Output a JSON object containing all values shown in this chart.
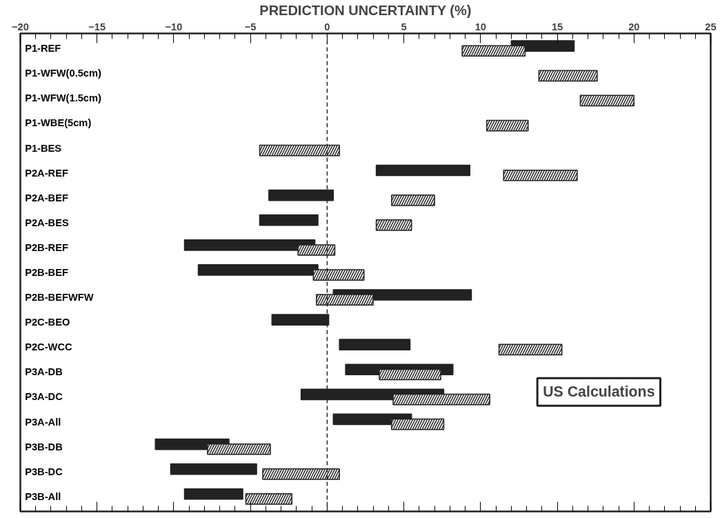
{
  "chart_data": {
    "type": "bar",
    "orientation": "horizontal",
    "xlabel": "PREDICTION UNCERTAINTY (%)",
    "categories": [
      "P1-REF",
      "P1-WFW(0.5cm)",
      "P1-WFW(1.5cm)",
      "P1-WBE(5cm)",
      "P1-BES",
      "P2A-REF",
      "P2A-BEF",
      "P2A-BES",
      "P2B-REF",
      "P2B-BEF",
      "P2B-BEFWFW",
      "P2C-BEO",
      "P2C-WCC",
      "P3A-DB",
      "P3A-DC",
      "P3A-All",
      "P3B-DB",
      "P3B-DC",
      "P3B-All"
    ],
    "series": [
      {
        "color": "#222222",
        "base": [
          12.0,
          null,
          null,
          null,
          null,
          3.2,
          -3.8,
          -4.4,
          -9.3,
          -8.4,
          0.4,
          -3.6,
          0.8,
          1.2,
          -1.7,
          0.4,
          -11.2,
          -10.2,
          -9.3
        ],
        "values": [
          4.1,
          null,
          null,
          null,
          null,
          6.1,
          4.2,
          3.8,
          8.5,
          7.8,
          9.0,
          3.7,
          4.6,
          7.0,
          9.3,
          5.1,
          4.8,
          5.6,
          3.8
        ]
      },
      {
        "color": "#ffffff",
        "base": [
          8.8,
          13.8,
          16.5,
          10.4,
          -4.4,
          11.5,
          4.2,
          3.2,
          -1.9,
          -0.9,
          -0.7,
          null,
          11.2,
          3.4,
          4.3,
          4.2,
          -7.8,
          -4.2,
          -5.3
        ],
        "values": [
          4.1,
          3.8,
          3.5,
          2.7,
          5.2,
          4.8,
          2.8,
          2.3,
          2.4,
          3.3,
          3.7,
          null,
          4.1,
          4.0,
          6.3,
          3.4,
          4.1,
          5.0,
          3.0
        ]
      }
    ],
    "xlim": [
      -20,
      25
    ],
    "xticks": [
      -20,
      -15,
      -10,
      -5,
      0,
      5,
      10,
      15,
      20,
      25
    ],
    "tick_labels": "x",
    "grid": false,
    "ref_lines": [
      {
        "axis": "x",
        "value": 0,
        "line_style": "dashed",
        "color": "#222222"
      }
    ],
    "annotations": [
      "US Calculations"
    ]
  }
}
